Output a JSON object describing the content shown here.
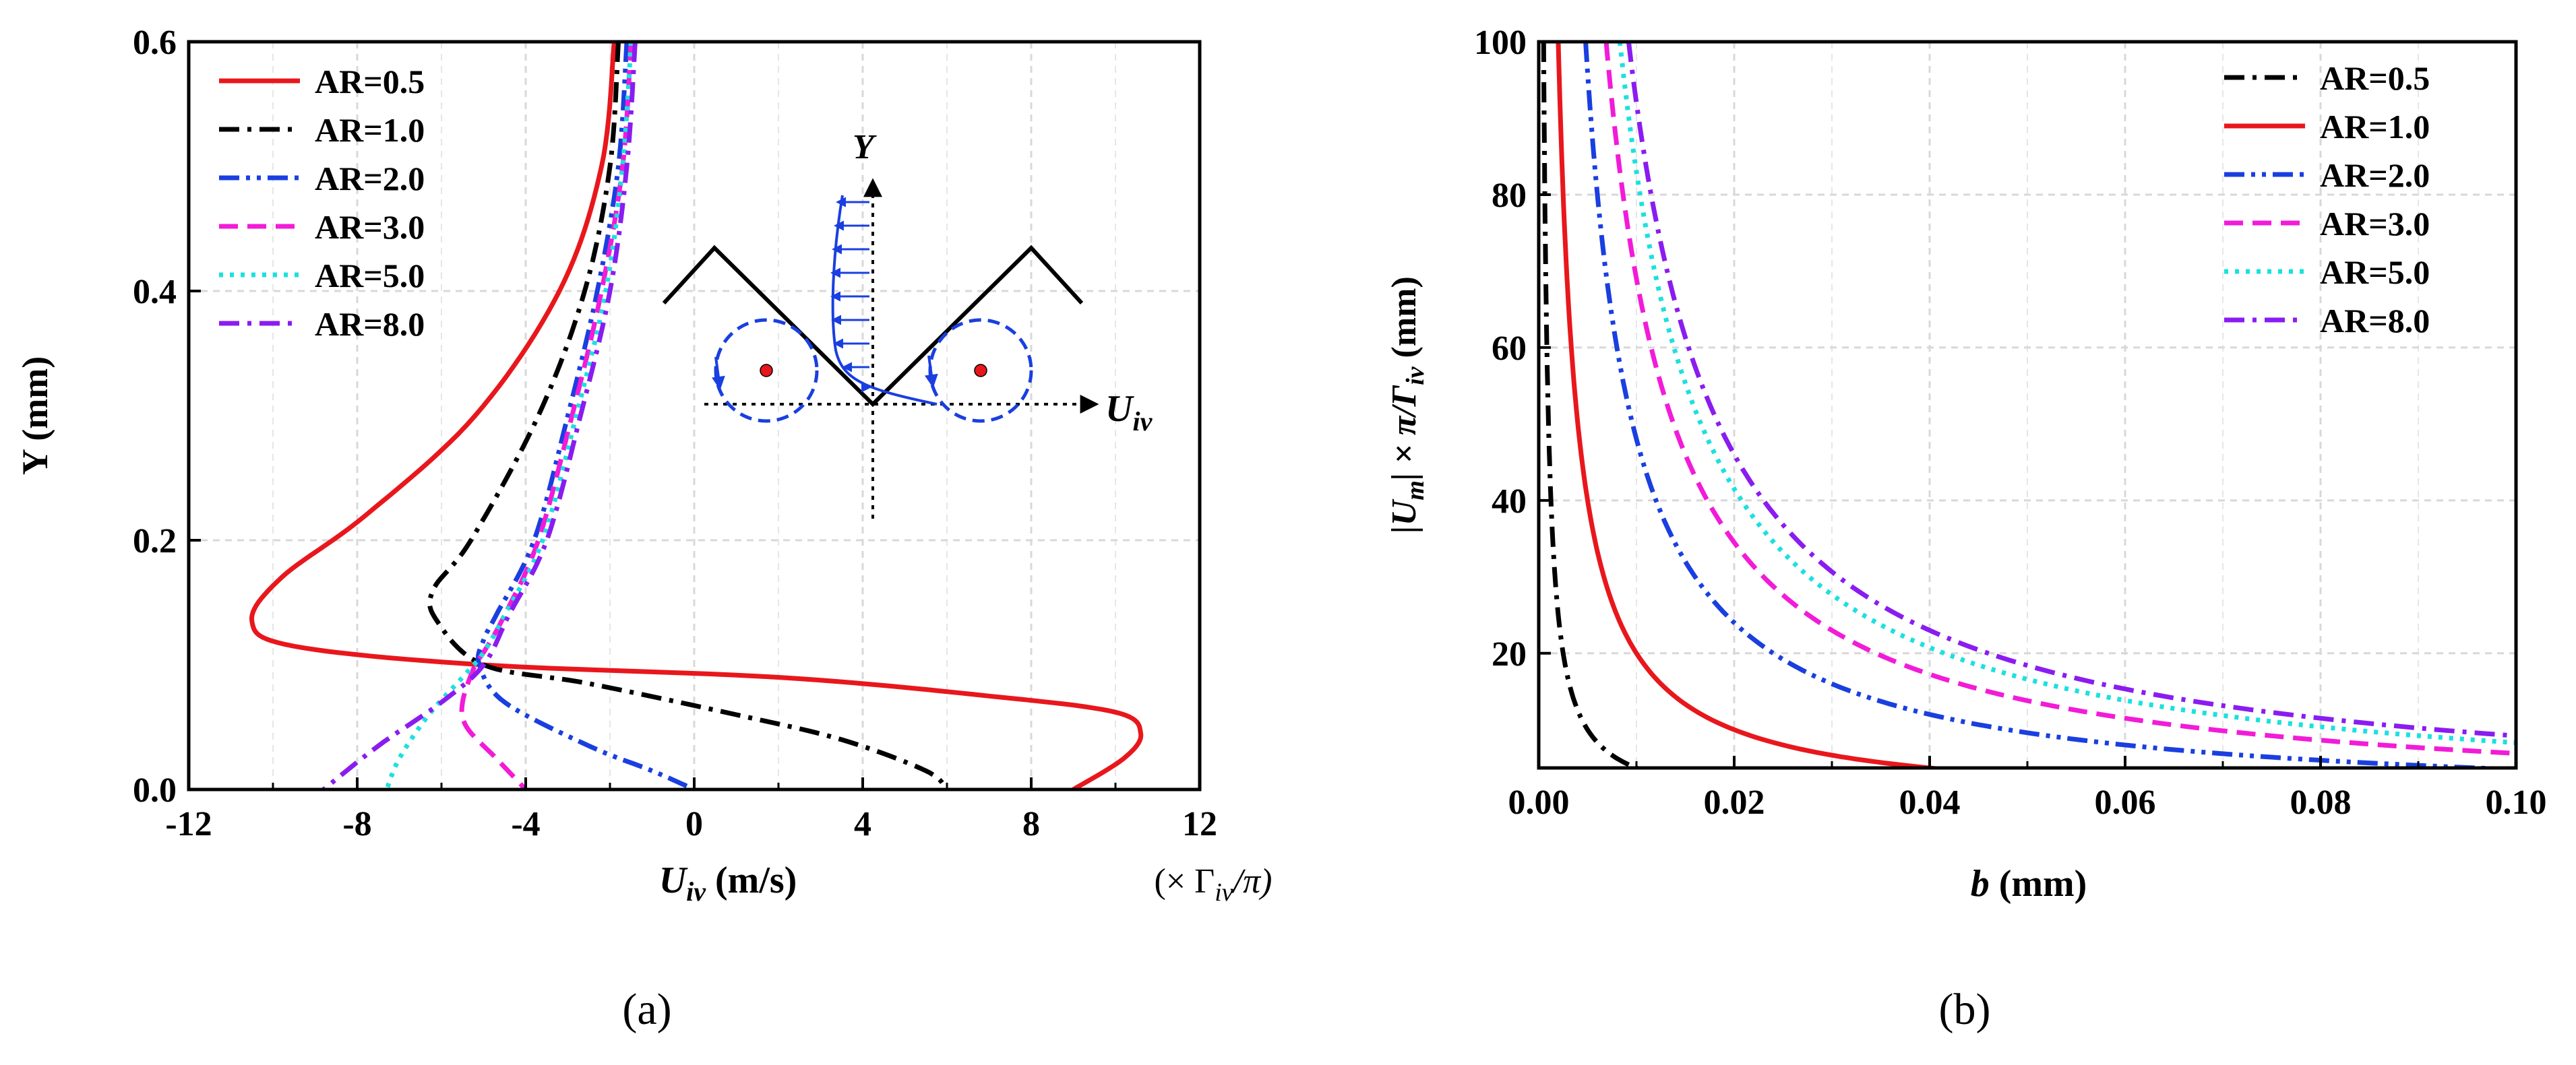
{
  "chart_data": [
    {
      "type": "line",
      "id": "a",
      "caption": "(a)",
      "xlabel_main": "U",
      "xlabel_sub": "iv",
      "xlabel_units": " (m/s)",
      "xlabel_extra": "(× Γ",
      "xlabel_extra_sub": "iv",
      "xlabel_extra_tail": "/π)",
      "ylabel": "Y (mm)",
      "xlim": [
        -12,
        12
      ],
      "ylim": [
        0,
        0.6
      ],
      "xticks": [
        -12,
        -8,
        -4,
        0,
        4,
        8,
        12
      ],
      "xtick_labels": [
        "-12",
        "-8",
        "-4",
        "0",
        "4",
        "8",
        "12"
      ],
      "yticks": [
        0,
        0.2,
        0.4,
        0.6
      ],
      "ytick_labels": [
        "0.0",
        "0.2",
        "0.4",
        "0.6"
      ],
      "legend_position": "top-left",
      "inset": {
        "y_label": "Y",
        "x_label": "U",
        "x_label_sub": "iv"
      },
      "series": [
        {
          "name": "AR=0.5",
          "color": "#e8171c",
          "dash": "solid",
          "x": [
            -1.9,
            -2.2,
            -3.2,
            -5.2,
            -7.8,
            -9.8,
            -10.5,
            -9.5,
            -5.0,
            2.0,
            7.0,
            10.0,
            10.6,
            10.2,
            9.0
          ],
          "y": [
            0.6,
            0.5,
            0.4,
            0.3,
            0.22,
            0.17,
            0.135,
            0.115,
            0.1,
            0.09,
            0.075,
            0.062,
            0.045,
            0.025,
            0.0
          ]
        },
        {
          "name": "AR=1.0",
          "color": "#000000",
          "dash": "dashdot",
          "x": [
            -1.8,
            -2.0,
            -2.6,
            -3.7,
            -5.3,
            -6.2,
            -6.1,
            -5.0,
            -2.5,
            1.0,
            3.5,
            5.5,
            6.0
          ],
          "y": [
            0.6,
            0.5,
            0.4,
            0.3,
            0.2,
            0.16,
            0.135,
            0.1,
            0.085,
            0.06,
            0.04,
            0.015,
            0.0
          ]
        },
        {
          "name": "AR=2.0",
          "color": "#1a3fe0",
          "dash": "dashdotdot",
          "x": [
            -1.6,
            -1.8,
            -2.3,
            -3.0,
            -3.8,
            -4.7,
            -5.0,
            -5.1,
            -4.5,
            -2.5,
            -1.0,
            0.0
          ],
          "y": [
            0.6,
            0.5,
            0.4,
            0.3,
            0.2,
            0.14,
            0.12,
            0.1,
            0.07,
            0.035,
            0.015,
            0.0
          ]
        },
        {
          "name": "AR=3.0",
          "color": "#f21bd8",
          "dash": "dashed",
          "x": [
            -1.5,
            -1.7,
            -2.2,
            -2.9,
            -3.7,
            -4.5,
            -5.0,
            -5.2,
            -5.5,
            -5.4,
            -4.7,
            -4.0
          ],
          "y": [
            0.6,
            0.5,
            0.4,
            0.3,
            0.2,
            0.14,
            0.11,
            0.1,
            0.07,
            0.05,
            0.025,
            0.0
          ]
        },
        {
          "name": "AR=5.0",
          "color": "#1ce0e0",
          "dash": "dotted",
          "x": [
            -1.5,
            -1.7,
            -2.1,
            -2.8,
            -3.6,
            -4.5,
            -5.0,
            -5.5,
            -6.3,
            -7.0,
            -7.3
          ],
          "y": [
            0.6,
            0.5,
            0.4,
            0.3,
            0.2,
            0.14,
            0.11,
            0.09,
            0.06,
            0.025,
            0.0
          ]
        },
        {
          "name": "AR=8.0",
          "color": "#8a1cf0",
          "dash": "dashdot",
          "x": [
            -1.4,
            -1.6,
            -2.0,
            -2.7,
            -3.5,
            -4.4,
            -5.0,
            -6.0,
            -7.5,
            -8.8
          ],
          "y": [
            0.6,
            0.5,
            0.4,
            0.3,
            0.2,
            0.14,
            0.1,
            0.07,
            0.035,
            0.0
          ]
        }
      ]
    },
    {
      "type": "line",
      "id": "b",
      "caption": "(b)",
      "xlabel_main": "b",
      "xlabel_units": " (mm)",
      "ylabel_main": "|U",
      "ylabel_sub": "m",
      "ylabel_mid": "| × π/Γ",
      "ylabel_sub2": "iv",
      "ylabel_units": "  (mm)",
      "xlim": [
        0,
        0.1
      ],
      "ylim": [
        5,
        100
      ],
      "xticks": [
        0,
        0.02,
        0.04,
        0.06,
        0.08,
        0.1
      ],
      "xtick_labels": [
        "0.00",
        "0.02",
        "0.04",
        "0.06",
        "0.08",
        "0.10"
      ],
      "yticks": [
        20,
        40,
        60,
        80,
        100
      ],
      "ytick_labels": [
        "20",
        "40",
        "60",
        "80",
        "100"
      ],
      "legend_position": "top-right",
      "series": [
        {
          "name": "AR=0.5",
          "color": "#000000",
          "dash": "dashdot",
          "k": 0.05
        },
        {
          "name": "AR=1.0",
          "color": "#e8171c",
          "dash": "solid",
          "k": 0.2
        },
        {
          "name": "AR=2.0",
          "color": "#1a3fe0",
          "dash": "dashdotdot",
          "k": 0.48
        },
        {
          "name": "AR=3.0",
          "color": "#f21bd8",
          "dash": "dashed",
          "k": 0.69
        },
        {
          "name": "AR=5.0",
          "color": "#1ce0e0",
          "dash": "dotted",
          "k": 0.83
        },
        {
          "name": "AR=8.0",
          "color": "#8a1cf0",
          "dash": "dashdot",
          "k": 0.92
        }
      ]
    }
  ]
}
